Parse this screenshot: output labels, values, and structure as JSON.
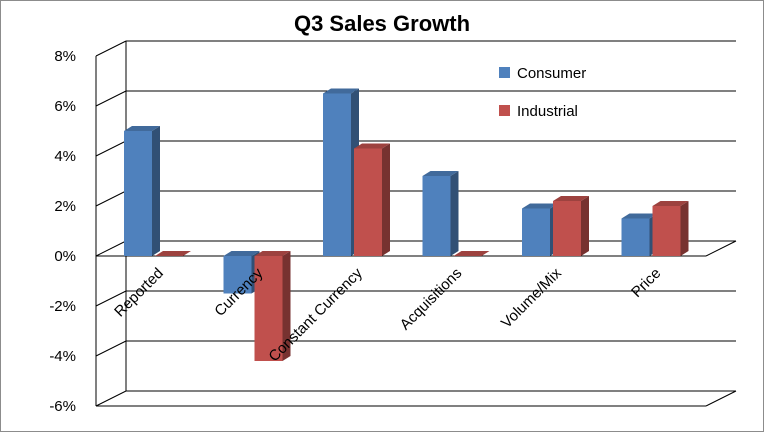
{
  "chart_data": {
    "type": "bar",
    "title": "Q3 Sales Growth",
    "xlabel": "",
    "ylabel": "",
    "categories": [
      "Reported",
      "Currency",
      "Constant Currency",
      "Acquisitions",
      "Volume/Mix",
      "Price"
    ],
    "series": [
      {
        "name": "Consumer",
        "color": "#4f81bd",
        "values": [
          5.0,
          -1.5,
          6.5,
          3.2,
          1.9,
          1.5
        ]
      },
      {
        "name": "Industrial",
        "color": "#c0504d",
        "values": [
          0.0,
          -4.2,
          4.3,
          0.0,
          2.2,
          2.0
        ]
      }
    ],
    "ylim": [
      -6,
      8
    ],
    "yticks": [
      -6,
      -4,
      -2,
      0,
      2,
      4,
      6,
      8
    ],
    "ytick_format": "percent",
    "grid": true,
    "legend_position": "top-right",
    "style": "3d-clustered-column"
  }
}
